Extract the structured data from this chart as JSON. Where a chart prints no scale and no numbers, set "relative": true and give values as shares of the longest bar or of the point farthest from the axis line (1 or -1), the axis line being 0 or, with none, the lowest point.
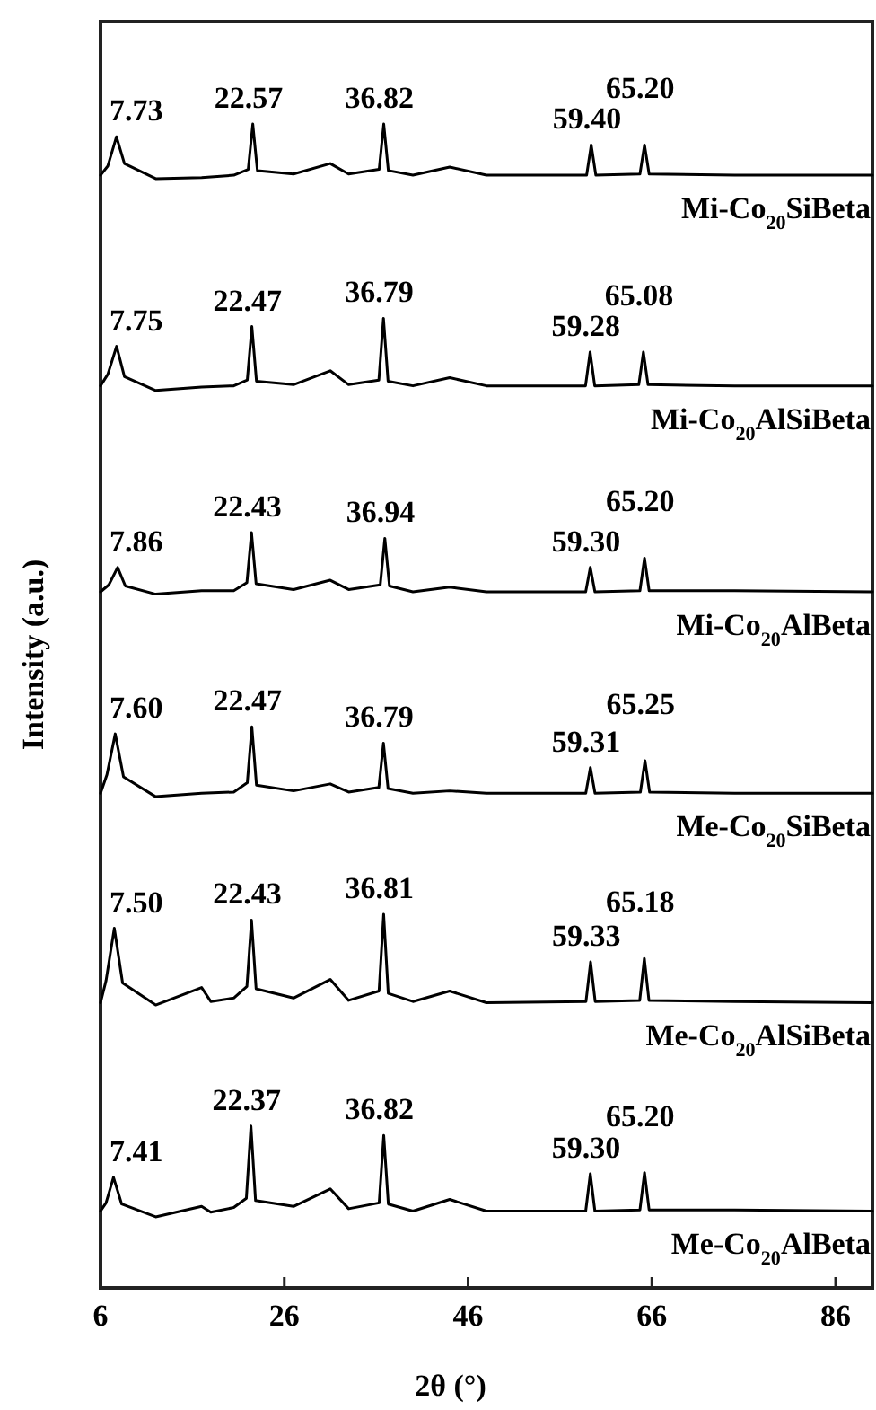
{
  "chart_data": {
    "type": "line",
    "relative": true,
    "xlabel": "2θ (°)",
    "ylabel": "Intensity (a.u.)",
    "xlim": [
      6,
      90
    ],
    "xticks": [
      6,
      26,
      46,
      66,
      86
    ],
    "grid": false,
    "marker": "none",
    "line_style": "solid",
    "series": [
      {
        "name": "Mi-Co$_{20}$SiBeta",
        "color": "#000000",
        "x": [
          6,
          6.8,
          7.73,
          8.6,
          12,
          17,
          20.5,
          22.07,
          22.57,
          23.07,
          27,
          31,
          33,
          36.32,
          36.82,
          37.32,
          40,
          44,
          48,
          58.9,
          59.4,
          59.9,
          64.7,
          65.2,
          65.7,
          75,
          90
        ],
        "values": [
          0.956,
          0.964,
          0.989,
          0.966,
          0.953,
          0.954,
          0.956,
          0.961,
          1.0,
          0.96,
          0.957,
          0.966,
          0.957,
          0.961,
          1.0,
          0.96,
          0.956,
          0.963,
          0.956,
          0.956,
          0.982,
          0.956,
          0.957,
          0.982,
          0.957,
          0.956,
          0.956
        ]
      },
      {
        "name": "Mi-Co$_{20}$AlSiBeta",
        "color": "#000000",
        "x": [
          6,
          6.8,
          7.75,
          8.6,
          12,
          17,
          20.5,
          21.97,
          22.47,
          22.97,
          27,
          31,
          33,
          36.29,
          36.79,
          37.29,
          40,
          44,
          48,
          58.78,
          59.28,
          59.78,
          64.58,
          65.08,
          65.58,
          75,
          90
        ],
        "values": [
          0.775,
          0.785,
          0.809,
          0.783,
          0.771,
          0.774,
          0.775,
          0.78,
          0.826,
          0.779,
          0.776,
          0.788,
          0.776,
          0.78,
          0.833,
          0.779,
          0.775,
          0.782,
          0.775,
          0.775,
          0.804,
          0.775,
          0.776,
          0.804,
          0.776,
          0.775,
          0.775
        ]
      },
      {
        "name": "Mi-Co$_{20}$AlBeta",
        "color": "#000000",
        "x": [
          6,
          6.9,
          7.86,
          8.7,
          12,
          17,
          20.5,
          21.93,
          22.43,
          22.93,
          27,
          31,
          33,
          36.44,
          36.94,
          37.44,
          40,
          44,
          48,
          58.8,
          59.3,
          59.8,
          64.7,
          65.2,
          65.7,
          75,
          90
        ],
        "values": [
          0.598,
          0.604,
          0.619,
          0.603,
          0.596,
          0.599,
          0.599,
          0.606,
          0.649,
          0.605,
          0.6,
          0.608,
          0.6,
          0.604,
          0.644,
          0.603,
          0.598,
          0.602,
          0.598,
          0.598,
          0.619,
          0.598,
          0.599,
          0.627,
          0.599,
          0.599,
          0.598
        ]
      },
      {
        "name": "Me-Co$_{20}$SiBeta",
        "color": "#000000",
        "x": [
          6,
          6.7,
          7.6,
          8.5,
          12,
          17,
          20.5,
          21.97,
          22.47,
          22.97,
          27,
          31,
          33,
          36.29,
          36.79,
          37.29,
          40,
          44,
          48,
          58.81,
          59.31,
          59.81,
          64.75,
          65.25,
          65.75,
          75,
          90
        ],
        "values": [
          0.425,
          0.441,
          0.476,
          0.439,
          0.422,
          0.425,
          0.426,
          0.434,
          0.482,
          0.432,
          0.427,
          0.433,
          0.426,
          0.43,
          0.468,
          0.429,
          0.425,
          0.427,
          0.425,
          0.425,
          0.447,
          0.425,
          0.426,
          0.453,
          0.426,
          0.425,
          0.425
        ]
      },
      {
        "name": "Me-Co$_{20}$AlSiBeta",
        "color": "#000000",
        "x": [
          6,
          6.6,
          7.5,
          8.4,
          12,
          17,
          18,
          20.5,
          21.93,
          22.43,
          22.93,
          27,
          31,
          33,
          36.31,
          36.81,
          37.31,
          40,
          44,
          48,
          58.83,
          59.33,
          59.83,
          64.68,
          65.18,
          65.68,
          75,
          90
        ],
        "values": [
          0.245,
          0.264,
          0.309,
          0.262,
          0.243,
          0.258,
          0.246,
          0.249,
          0.259,
          0.316,
          0.257,
          0.249,
          0.265,
          0.247,
          0.255,
          0.321,
          0.253,
          0.246,
          0.255,
          0.245,
          0.246,
          0.28,
          0.246,
          0.247,
          0.283,
          0.247,
          0.246,
          0.245
        ]
      },
      {
        "name": "Me-Co$_{20}$AlBeta",
        "color": "#000000",
        "x": [
          6,
          6.6,
          7.41,
          8.3,
          12,
          17,
          18,
          20.5,
          21.87,
          22.37,
          22.87,
          27,
          31,
          33,
          36.32,
          36.82,
          37.32,
          40,
          44,
          48,
          58.8,
          59.3,
          59.8,
          64.7,
          65.2,
          65.7,
          75,
          90
        ],
        "values": [
          0.066,
          0.073,
          0.095,
          0.072,
          0.061,
          0.07,
          0.065,
          0.069,
          0.077,
          0.139,
          0.075,
          0.07,
          0.085,
          0.068,
          0.073,
          0.131,
          0.072,
          0.066,
          0.076,
          0.066,
          0.066,
          0.098,
          0.066,
          0.067,
          0.099,
          0.067,
          0.067,
          0.066
        ]
      }
    ],
    "annotations": [
      {
        "text": "7.73",
        "x": 7.73,
        "y": 0.989
      },
      {
        "text": "22.57",
        "x": 22.57,
        "y": 1.0
      },
      {
        "text": "36.82",
        "x": 36.82,
        "y": 1.0
      },
      {
        "text": "59.40",
        "x": 59.4,
        "y": 0.982
      },
      {
        "text": "65.20",
        "x": 65.2,
        "y": 0.982
      },
      {
        "text": "7.75",
        "x": 7.75,
        "y": 0.809
      },
      {
        "text": "22.47",
        "x": 22.47,
        "y": 0.826
      },
      {
        "text": "36.79",
        "x": 36.79,
        "y": 0.833
      },
      {
        "text": "59.28",
        "x": 59.28,
        "y": 0.804
      },
      {
        "text": "65.08",
        "x": 65.08,
        "y": 0.804
      },
      {
        "text": "7.86",
        "x": 7.86,
        "y": 0.619
      },
      {
        "text": "22.43",
        "x": 22.43,
        "y": 0.649
      },
      {
        "text": "36.94",
        "x": 36.94,
        "y": 0.644
      },
      {
        "text": "59.30",
        "x": 59.3,
        "y": 0.619
      },
      {
        "text": "65.20",
        "x": 65.2,
        "y": 0.627
      },
      {
        "text": "7.60",
        "x": 7.6,
        "y": 0.476
      },
      {
        "text": "22.47",
        "x": 22.47,
        "y": 0.482
      },
      {
        "text": "36.79",
        "x": 36.79,
        "y": 0.468
      },
      {
        "text": "59.31",
        "x": 59.31,
        "y": 0.447
      },
      {
        "text": "65.25",
        "x": 65.25,
        "y": 0.453
      },
      {
        "text": "7.50",
        "x": 7.5,
        "y": 0.309
      },
      {
        "text": "22.43",
        "x": 22.43,
        "y": 0.316
      },
      {
        "text": "36.81",
        "x": 36.81,
        "y": 0.321
      },
      {
        "text": "59.33",
        "x": 59.33,
        "y": 0.28
      },
      {
        "text": "65.18",
        "x": 65.18,
        "y": 0.283
      },
      {
        "text": "7.41",
        "x": 7.41,
        "y": 0.095
      },
      {
        "text": "22.37",
        "x": 22.37,
        "y": 0.139
      },
      {
        "text": "36.82",
        "x": 36.82,
        "y": 0.131
      },
      {
        "text": "59.30",
        "x": 59.3,
        "y": 0.098
      },
      {
        "text": "65.20",
        "x": 65.2,
        "y": 0.099
      }
    ]
  }
}
